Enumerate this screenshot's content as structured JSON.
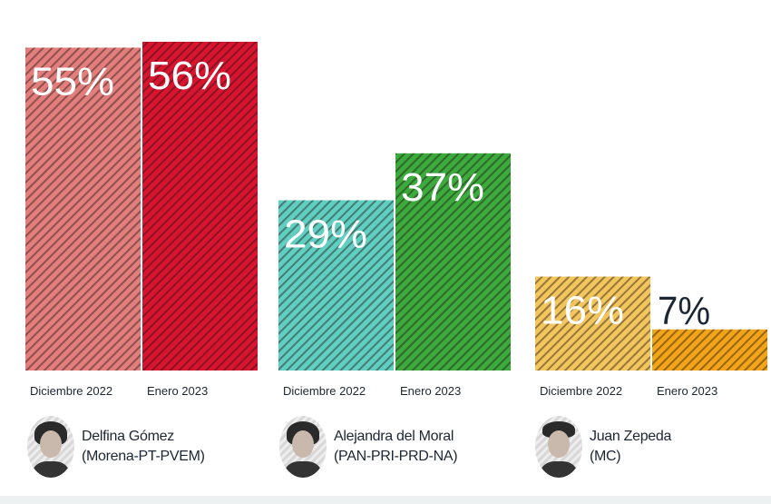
{
  "chart_data": {
    "type": "bar",
    "groups": [
      {
        "candidate": "Delfina Gómez",
        "party": "(Morena-PT-PVEM)",
        "bars": [
          {
            "period": "Diciembre 2022",
            "value": 55,
            "label": "55%",
            "color": "#e27f7c"
          },
          {
            "period": "Enero 2023",
            "value": 56,
            "label": "56%",
            "color": "#d9142f"
          }
        ]
      },
      {
        "candidate": "Alejandra del Moral",
        "party": "(PAN-PRI-PRD-NA)",
        "bars": [
          {
            "period": "Diciembre 2022",
            "value": 29,
            "label": "29%",
            "color": "#5fcfc1"
          },
          {
            "period": "Enero 2023",
            "value": 37,
            "label": "37%",
            "color": "#3bab3d"
          }
        ]
      },
      {
        "candidate": "Juan Zepeda",
        "party": "(MC)",
        "bars": [
          {
            "period": "Diciembre 2022",
            "value": 16,
            "label": "16%",
            "color": "#f2c65c"
          },
          {
            "period": "Enero 2023",
            "value": 7,
            "label": "7%",
            "color": "#f2a518"
          }
        ]
      }
    ],
    "ylim": [
      0,
      56
    ],
    "grid": false,
    "label_colors": {
      "light": "#ffffff",
      "dark": "#1d2633"
    }
  }
}
